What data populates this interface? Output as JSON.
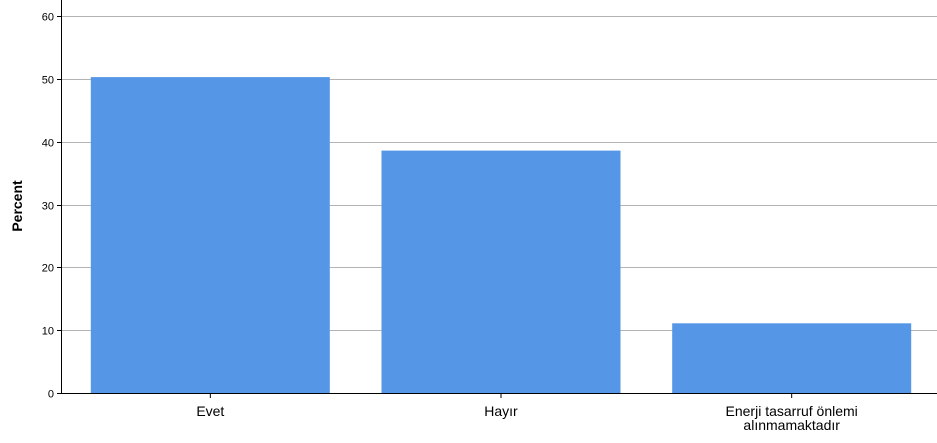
{
  "chart_data": {
    "type": "bar",
    "categories": [
      "Evet",
      "Hayır",
      "Enerji tasarruf önlemi alınmamaktadır"
    ],
    "category_label_lines": [
      [
        "Evet"
      ],
      [
        "Hayır"
      ],
      [
        "Enerji tasarruf önlemi",
        "alınmamaktadır"
      ]
    ],
    "values": [
      50.3,
      38.6,
      11.1
    ],
    "ylabel": "Percent",
    "xlabel": "",
    "ylim": [
      0,
      62
    ],
    "yticks": [
      0,
      10,
      20,
      30,
      40,
      50,
      60
    ],
    "grid": "horizontal",
    "bar_color": "#5596E6",
    "grid_color": "#b4b4b4"
  }
}
